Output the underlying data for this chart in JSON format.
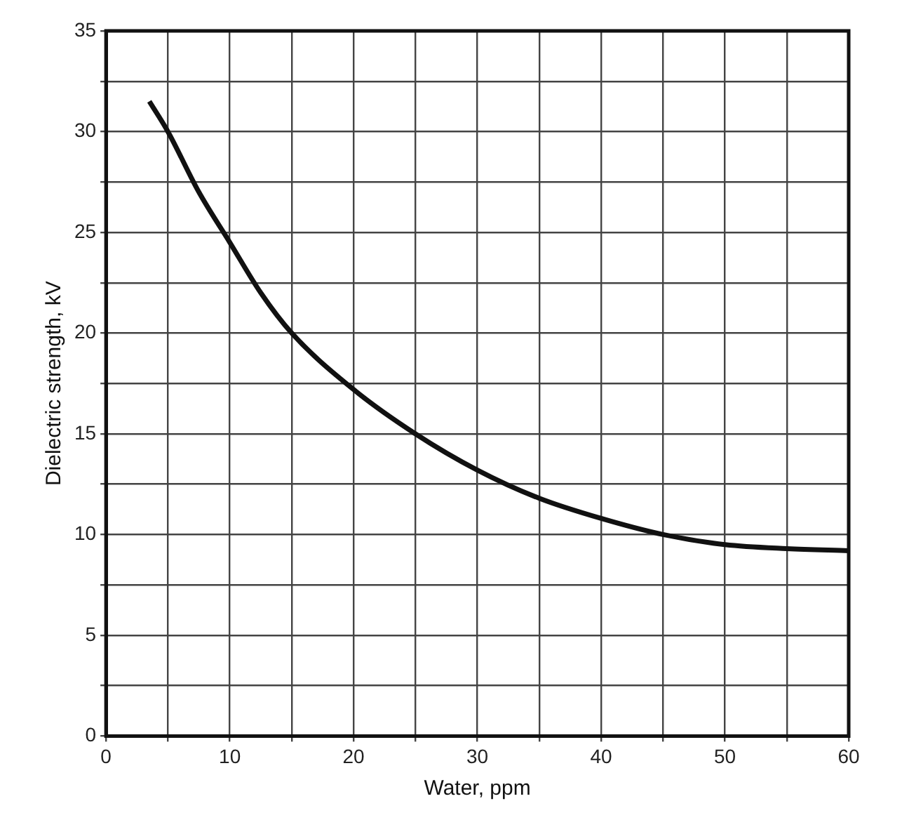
{
  "chart_data": {
    "type": "line",
    "xlabel": "Water, ppm",
    "ylabel": "Dielectric strength, kV",
    "x": [
      3.5,
      5,
      7.5,
      10,
      12.5,
      15,
      20,
      25,
      30,
      35,
      40,
      45,
      50,
      55,
      60
    ],
    "series": [
      {
        "color": "#111111",
        "values": [
          31.5,
          30,
          27,
          24.5,
          22,
          20,
          17.2,
          15,
          13.2,
          11.8,
          10.8,
          10,
          9.5,
          9.3,
          9.2
        ]
      }
    ],
    "xlim": [
      0,
      60
    ],
    "ylim": [
      0,
      35
    ],
    "xticks": [
      0,
      {
        "value": 5,
        "label": null
      },
      10,
      {
        "value": 15,
        "label": null
      },
      20,
      {
        "value": 25,
        "label": null
      },
      30,
      {
        "value": 35,
        "label": null
      },
      40,
      {
        "value": 45,
        "label": null
      },
      50,
      {
        "value": 55,
        "label": null
      },
      60
    ],
    "yticks": [
      0,
      {
        "value": 2.5,
        "label": null
      },
      5,
      {
        "value": 7.5,
        "label": null
      },
      10,
      {
        "value": 12.5,
        "label": null
      },
      15,
      {
        "value": 17.5,
        "label": null
      },
      20,
      {
        "value": 22.5,
        "label": null
      },
      25,
      {
        "value": 27.5,
        "label": null
      },
      30,
      {
        "value": 32.5,
        "label": null
      },
      35
    ],
    "grid": true,
    "legend": false,
    "marker": "none",
    "line_style": "solid"
  }
}
